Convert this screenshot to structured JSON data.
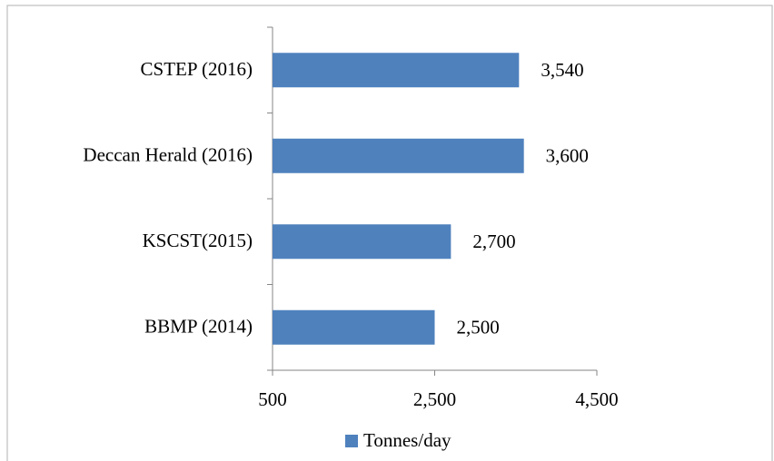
{
  "chart_data": {
    "type": "bar",
    "orientation": "horizontal",
    "categories": [
      "CSTEP (2016)",
      "Deccan Herald (2016)",
      "KSCST(2015)",
      "BBMP (2014)"
    ],
    "series": [
      {
        "name": "Tonnes/day",
        "color": "#4f81bd",
        "values": [
          3540,
          3600,
          2700,
          2500
        ],
        "value_labels": [
          "3,540",
          "3,600",
          "2,700",
          "2,500"
        ]
      }
    ],
    "xlim": [
      500,
      4500
    ],
    "xticks": [
      500,
      {
        "value": 2500,
        "label": "2,500"
      },
      {
        "value": 4500,
        "label": "4,500"
      }
    ],
    "legend": "bottom"
  }
}
